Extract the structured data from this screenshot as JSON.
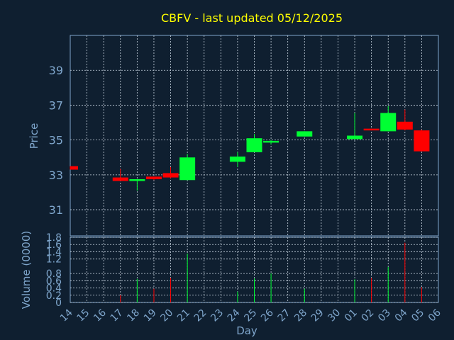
{
  "title": "CBFV - last updated 05/12/2025",
  "colors": {
    "background": "#0f1f30",
    "up": "#00ff33",
    "down": "#ff0000",
    "title": "#ffff00",
    "axis": "#7fa6cc"
  },
  "chart_data": [
    {
      "type": "candlestick",
      "ylabel": "Price",
      "ylim": [
        29.5,
        41
      ],
      "yticks": [
        31,
        33,
        35,
        37,
        39
      ],
      "grid": true,
      "x": [
        "14",
        "15",
        "16",
        "17",
        "18",
        "19",
        "20",
        "21",
        "22",
        "23",
        "24",
        "25",
        "26",
        "27",
        "28",
        "29",
        "30",
        "01",
        "02",
        "03",
        "04",
        "05",
        "06"
      ],
      "candles": [
        {
          "x": "14",
          "open": 33.5,
          "high": 33.5,
          "low": 33.3,
          "close": 33.3
        },
        {
          "x": "17",
          "open": 32.85,
          "high": 33.35,
          "low": 32.65,
          "close": 32.65
        },
        {
          "x": "18",
          "open": 32.65,
          "high": 32.75,
          "low": 32.1,
          "close": 32.75
        },
        {
          "x": "19",
          "open": 32.9,
          "high": 32.9,
          "low": 32.7,
          "close": 32.75
        },
        {
          "x": "20",
          "open": 33.1,
          "high": 33.45,
          "low": 32.8,
          "close": 32.85
        },
        {
          "x": "21",
          "open": 32.7,
          "high": 34.2,
          "low": 32.7,
          "close": 34.0
        },
        {
          "x": "24",
          "open": 33.75,
          "high": 34.3,
          "low": 33.45,
          "close": 34.05
        },
        {
          "x": "25",
          "open": 34.3,
          "high": 35.35,
          "low": 34.3,
          "close": 35.1
        },
        {
          "x": "26",
          "open": 34.85,
          "high": 35.0,
          "low": 34.75,
          "close": 34.95
        },
        {
          "x": "28",
          "open": 35.2,
          "high": 35.5,
          "low": 35.2,
          "close": 35.5
        },
        {
          "x": "01",
          "open": 35.05,
          "high": 36.55,
          "low": 35.05,
          "close": 35.25
        },
        {
          "x": "02",
          "open": 35.65,
          "high": 35.65,
          "low": 35.55,
          "close": 35.55
        },
        {
          "x": "03",
          "open": 35.5,
          "high": 36.95,
          "low": 35.5,
          "close": 36.55
        },
        {
          "x": "04",
          "open": 36.05,
          "high": 36.75,
          "low": 35.55,
          "close": 35.6
        },
        {
          "x": "05",
          "open": 35.55,
          "high": 35.6,
          "low": 34.35,
          "close": 34.35
        }
      ]
    },
    {
      "type": "bar",
      "xlabel": "Day",
      "ylabel": "Volume (0000)",
      "ylim": [
        0,
        1.8
      ],
      "yticks": [
        "0",
        "0.2",
        "0.4",
        "0.6",
        "0.8",
        "1.2",
        "1.4",
        "1.6",
        "1.8"
      ],
      "ytick_values": [
        0,
        0.2,
        0.4,
        0.6,
        0.8,
        1.2,
        1.4,
        1.6,
        1.8
      ],
      "categories": [
        "14",
        "15",
        "16",
        "17",
        "18",
        "19",
        "20",
        "21",
        "22",
        "23",
        "24",
        "25",
        "26",
        "27",
        "28",
        "29",
        "30",
        "01",
        "02",
        "03",
        "04",
        "05",
        "06"
      ],
      "volumes": [
        {
          "x": "17",
          "value": 0.2,
          "dir": "down"
        },
        {
          "x": "18",
          "value": 0.65,
          "dir": "up"
        },
        {
          "x": "19",
          "value": 0.38,
          "dir": "down"
        },
        {
          "x": "20",
          "value": 0.68,
          "dir": "down"
        },
        {
          "x": "21",
          "value": 1.35,
          "dir": "up"
        },
        {
          "x": "24",
          "value": 0.3,
          "dir": "up"
        },
        {
          "x": "25",
          "value": 0.66,
          "dir": "up"
        },
        {
          "x": "26",
          "value": 0.8,
          "dir": "up"
        },
        {
          "x": "28",
          "value": 0.38,
          "dir": "up"
        },
        {
          "x": "01",
          "value": 0.64,
          "dir": "up"
        },
        {
          "x": "02",
          "value": 0.68,
          "dir": "down"
        },
        {
          "x": "03",
          "value": 0.98,
          "dir": "up"
        },
        {
          "x": "04",
          "value": 1.65,
          "dir": "down"
        },
        {
          "x": "05",
          "value": 0.42,
          "dir": "down"
        }
      ]
    }
  ]
}
